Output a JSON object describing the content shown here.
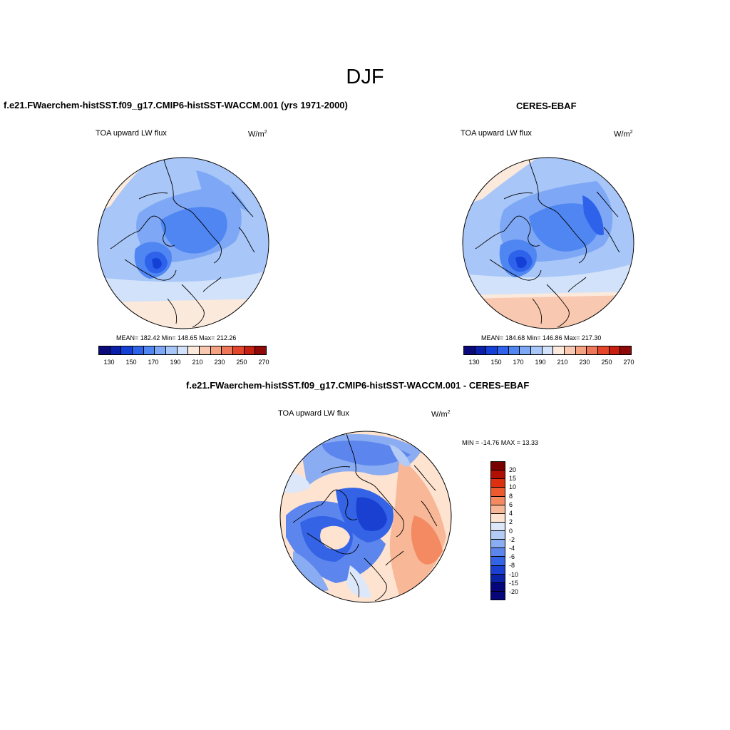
{
  "season": "DJF",
  "panels": {
    "model": {
      "title": "f.e21.FWaerchem-histSST.f09_g17.CMIP6-histSST-WACCM.001 (yrs 1971-2000)",
      "variable": "TOA upward LW flux",
      "units": "W/m",
      "units_exp": "2",
      "stats": "MEAN= 182.42  Min= 148.65  Max= 212.26",
      "colorbar_ticks": [
        "130",
        "150",
        "170",
        "190",
        "210",
        "230",
        "250",
        "270"
      ]
    },
    "obs": {
      "title": "CERES-EBAF",
      "variable": "TOA upward LW flux",
      "units": "W/m",
      "units_exp": "2",
      "stats": "MEAN= 184.68  Min= 146.86  Max= 217.30",
      "colorbar_ticks": [
        "130",
        "150",
        "170",
        "190",
        "210",
        "230",
        "250",
        "270"
      ]
    },
    "diff": {
      "title": "f.e21.FWaerchem-histSST.f09_g17.CMIP6-histSST-WACCM.001 - CERES-EBAF",
      "variable": "TOA upward LW flux",
      "units": "W/m",
      "units_exp": "2",
      "stats": "MIN = -14.76 MAX =  13.33",
      "colorbar_ticks": [
        "20",
        "15",
        "10",
        "8",
        "6",
        "4",
        "2",
        "0",
        "-2",
        "-4",
        "-6",
        "-8",
        "-10",
        "-15",
        "-20"
      ]
    }
  },
  "colors": {
    "abs_scale": [
      "#0a0a7a",
      "#0b1fa8",
      "#1540d6",
      "#2e62ea",
      "#4f86f2",
      "#7ea8f5",
      "#a8c6f8",
      "#d1e2fa",
      "#fbe9dc",
      "#f8c8b0",
      "#f4a282",
      "#ef7656",
      "#e5462b",
      "#c71f10",
      "#8e0909"
    ],
    "diff_scale": [
      "#7a0000",
      "#b01000",
      "#dc3010",
      "#ee5a30",
      "#f48a62",
      "#f8b898",
      "#fde3d0",
      "#dce8fa",
      "#b4cbf6",
      "#8aacf2",
      "#5c86ee",
      "#3463e6",
      "#1a40d2",
      "#0a22a6",
      "#06067a"
    ],
    "coast": "#000000"
  }
}
